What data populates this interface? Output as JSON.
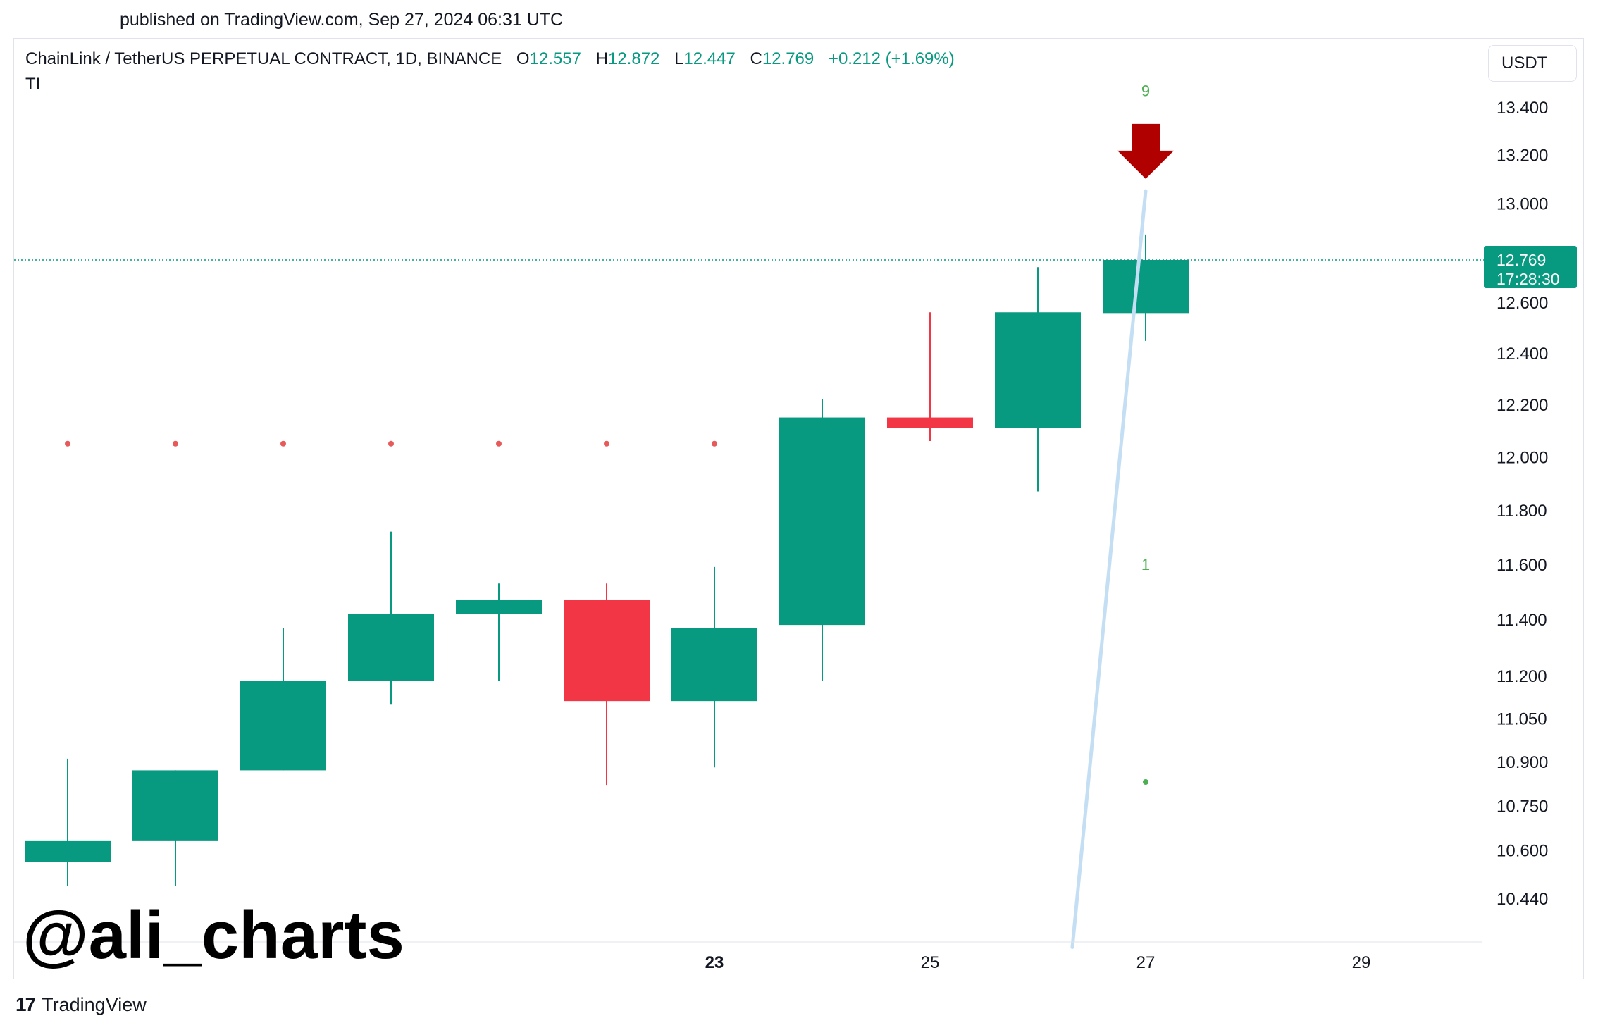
{
  "published": "published on TradingView.com, Sep 27, 2024 06:31 UTC",
  "legend": {
    "symbol": "ChainLink / TetherUS PERPETUAL CONTRACT, 1D, BINANCE",
    "open_label": "O",
    "open": "12.557",
    "high_label": "H",
    "high": "12.872",
    "low_label": "L",
    "low": "12.447",
    "close_label": "C",
    "close": "12.769",
    "change": "+0.212 (+1.69%)",
    "indicator": "TI"
  },
  "currency": "USDT",
  "watermark": "@ali_charts",
  "brand": "TradingView",
  "price_tag": {
    "price": "12.769",
    "countdown": "17:28:30"
  },
  "colors": {
    "up": "#089981",
    "down": "#f23645",
    "signal_arrow": "#b10000",
    "trendline": "#c4dff3",
    "dot_red": "#e85a5a",
    "dot_green": "#4caf50"
  },
  "chart_data": {
    "type": "candlestick",
    "y_ticks": [
      13.4,
      13.2,
      13.0,
      12.6,
      12.4,
      12.2,
      12.0,
      11.8,
      11.6,
      11.4,
      11.2,
      11.05,
      10.9,
      10.75,
      10.6,
      10.44
    ],
    "y_tick_labels": [
      "13.400",
      "13.200",
      "13.000",
      "12.600",
      "12.400",
      "12.200",
      "12.000",
      "11.800",
      "11.600",
      "11.400",
      "11.200",
      "11.050",
      "10.900",
      "10.750",
      "10.600",
      "10.440"
    ],
    "x_ticks": [
      {
        "label": "23",
        "index": 6,
        "bold": true
      },
      {
        "label": "25",
        "index": 8,
        "bold": false
      },
      {
        "label": "27",
        "index": 10,
        "bold": false
      },
      {
        "label": "29",
        "index": 12,
        "bold": false
      }
    ],
    "candles": [
      {
        "o": 10.56,
        "h": 10.91,
        "l": 10.48,
        "c": 10.63
      },
      {
        "o": 10.63,
        "h": 10.87,
        "l": 10.48,
        "c": 10.87
      },
      {
        "o": 10.87,
        "h": 11.37,
        "l": 10.87,
        "c": 11.18
      },
      {
        "o": 11.18,
        "h": 11.72,
        "l": 11.1,
        "c": 11.42
      },
      {
        "o": 11.42,
        "h": 11.53,
        "l": 11.18,
        "c": 11.47
      },
      {
        "o": 11.47,
        "h": 11.53,
        "l": 10.82,
        "c": 11.11
      },
      {
        "o": 11.11,
        "h": 11.59,
        "l": 10.88,
        "c": 11.37
      },
      {
        "o": 11.38,
        "h": 12.22,
        "l": 11.18,
        "c": 12.15
      },
      {
        "o": 12.15,
        "h": 12.56,
        "l": 12.06,
        "c": 12.11
      },
      {
        "o": 12.11,
        "h": 12.74,
        "l": 11.87,
        "c": 12.56
      },
      {
        "o": 12.557,
        "h": 12.872,
        "l": 12.447,
        "c": 12.769
      }
    ],
    "td_setup_dots": [
      {
        "index": 0,
        "price": 12.05,
        "color": "red"
      },
      {
        "index": 1,
        "price": 12.05,
        "color": "red"
      },
      {
        "index": 2,
        "price": 12.05,
        "color": "red"
      },
      {
        "index": 3,
        "price": 12.05,
        "color": "red"
      },
      {
        "index": 4,
        "price": 12.05,
        "color": "red"
      },
      {
        "index": 5,
        "price": 12.05,
        "color": "red"
      },
      {
        "index": 6,
        "price": 12.05,
        "color": "red"
      },
      {
        "index": 10,
        "price": 10.83,
        "color": "green"
      }
    ],
    "td_labels": [
      {
        "index": 10,
        "price": 13.47,
        "text": "9"
      },
      {
        "index": 10,
        "price": 11.6,
        "text": "1"
      }
    ],
    "sell_signal": {
      "index": 10,
      "price": 13.1
    },
    "trendline": {
      "from": {
        "index": 9.32,
        "price": 10.28
      },
      "to": {
        "index": 10.0,
        "price": 13.05
      }
    },
    "last_price": 12.769
  }
}
